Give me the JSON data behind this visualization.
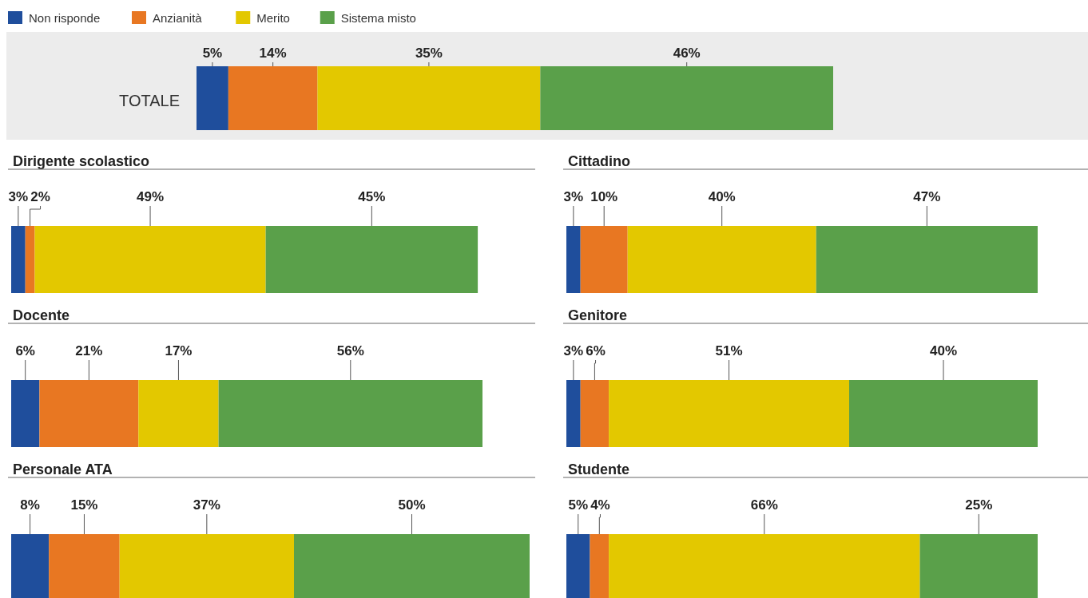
{
  "chart_data": [
    {
      "type": "bar",
      "stacked": true,
      "orientation": "horizontal",
      "legend": "top left",
      "categories": [
        "TOTALE"
      ],
      "series": [
        {
          "name": "Non risponde",
          "color": "#1f4e9c",
          "values": [
            5
          ],
          "value_labels": [
            "5%"
          ]
        },
        {
          "name": "Anzianità",
          "color": "#e87722",
          "values": [
            14
          ],
          "value_labels": [
            "14%"
          ]
        },
        {
          "name": "Merito",
          "color": "#e3c800",
          "values": [
            35
          ],
          "value_labels": [
            "35%"
          ]
        },
        {
          "name": "Sistema misto",
          "color": "#5aa04a",
          "values": [
            46
          ],
          "value_labels": [
            "46%"
          ]
        }
      ]
    },
    {
      "type": "bar",
      "stacked": true,
      "orientation": "horizontal",
      "title": "Dirigente scolastico",
      "categories": [
        null
      ],
      "series": [
        {
          "color": "#1f4e9c",
          "values": [
            3
          ],
          "value_labels": [
            "3%"
          ]
        },
        {
          "color": "#e87722",
          "values": [
            2
          ],
          "value_labels": [
            "2%"
          ]
        },
        {
          "color": "#e3c800",
          "values": [
            49
          ],
          "value_labels": [
            "49%"
          ]
        },
        {
          "color": "#5aa04a",
          "values": [
            45
          ],
          "value_labels": [
            "45%"
          ]
        }
      ]
    },
    {
      "type": "bar",
      "stacked": true,
      "orientation": "horizontal",
      "title": "Cittadino",
      "categories": [
        null
      ],
      "series": [
        {
          "color": "#1f4e9c",
          "values": [
            3
          ],
          "value_labels": [
            "3%"
          ]
        },
        {
          "color": "#e87722",
          "values": [
            10
          ],
          "value_labels": [
            "10%"
          ]
        },
        {
          "color": "#e3c800",
          "values": [
            40
          ],
          "value_labels": [
            "40%"
          ]
        },
        {
          "color": "#5aa04a",
          "values": [
            47
          ],
          "value_labels": [
            "47%"
          ]
        }
      ]
    },
    {
      "type": "bar",
      "stacked": true,
      "orientation": "horizontal",
      "title": "Docente",
      "categories": [
        null
      ],
      "series": [
        {
          "color": "#1f4e9c",
          "values": [
            6
          ],
          "value_labels": [
            "6%"
          ]
        },
        {
          "color": "#e87722",
          "values": [
            21
          ],
          "value_labels": [
            "21%"
          ]
        },
        {
          "color": "#e3c800",
          "values": [
            17
          ],
          "value_labels": [
            "17%"
          ]
        },
        {
          "color": "#5aa04a",
          "values": [
            56
          ],
          "value_labels": [
            "56%"
          ]
        }
      ]
    },
    {
      "type": "bar",
      "stacked": true,
      "orientation": "horizontal",
      "title": "Genitore",
      "categories": [
        null
      ],
      "series": [
        {
          "color": "#1f4e9c",
          "values": [
            3
          ],
          "value_labels": [
            "3%"
          ]
        },
        {
          "color": "#e87722",
          "values": [
            6
          ],
          "value_labels": [
            "6%"
          ]
        },
        {
          "color": "#e3c800",
          "values": [
            51
          ],
          "value_labels": [
            "51%"
          ]
        },
        {
          "color": "#5aa04a",
          "values": [
            40
          ],
          "value_labels": [
            "40%"
          ]
        }
      ]
    },
    {
      "type": "bar",
      "stacked": true,
      "orientation": "horizontal",
      "title": "Personale ATA",
      "categories": [
        null
      ],
      "series": [
        {
          "color": "#1f4e9c",
          "values": [
            8
          ],
          "value_labels": [
            "8%"
          ]
        },
        {
          "color": "#e87722",
          "values": [
            15
          ],
          "value_labels": [
            "15%"
          ]
        },
        {
          "color": "#e3c800",
          "values": [
            37
          ],
          "value_labels": [
            "37%"
          ]
        },
        {
          "color": "#5aa04a",
          "values": [
            50
          ],
          "value_labels": [
            "50%"
          ]
        }
      ]
    },
    {
      "type": "bar",
      "stacked": true,
      "orientation": "horizontal",
      "title": "Studente",
      "categories": [
        null
      ],
      "series": [
        {
          "color": "#1f4e9c",
          "values": [
            5
          ],
          "value_labels": [
            "5%"
          ]
        },
        {
          "color": "#e87722",
          "values": [
            4
          ],
          "value_labels": [
            "4%"
          ]
        },
        {
          "color": "#e3c800",
          "values": [
            66
          ],
          "value_labels": [
            "66%"
          ]
        },
        {
          "color": "#5aa04a",
          "values": [
            25
          ],
          "value_labels": [
            "25%"
          ]
        }
      ]
    }
  ]
}
